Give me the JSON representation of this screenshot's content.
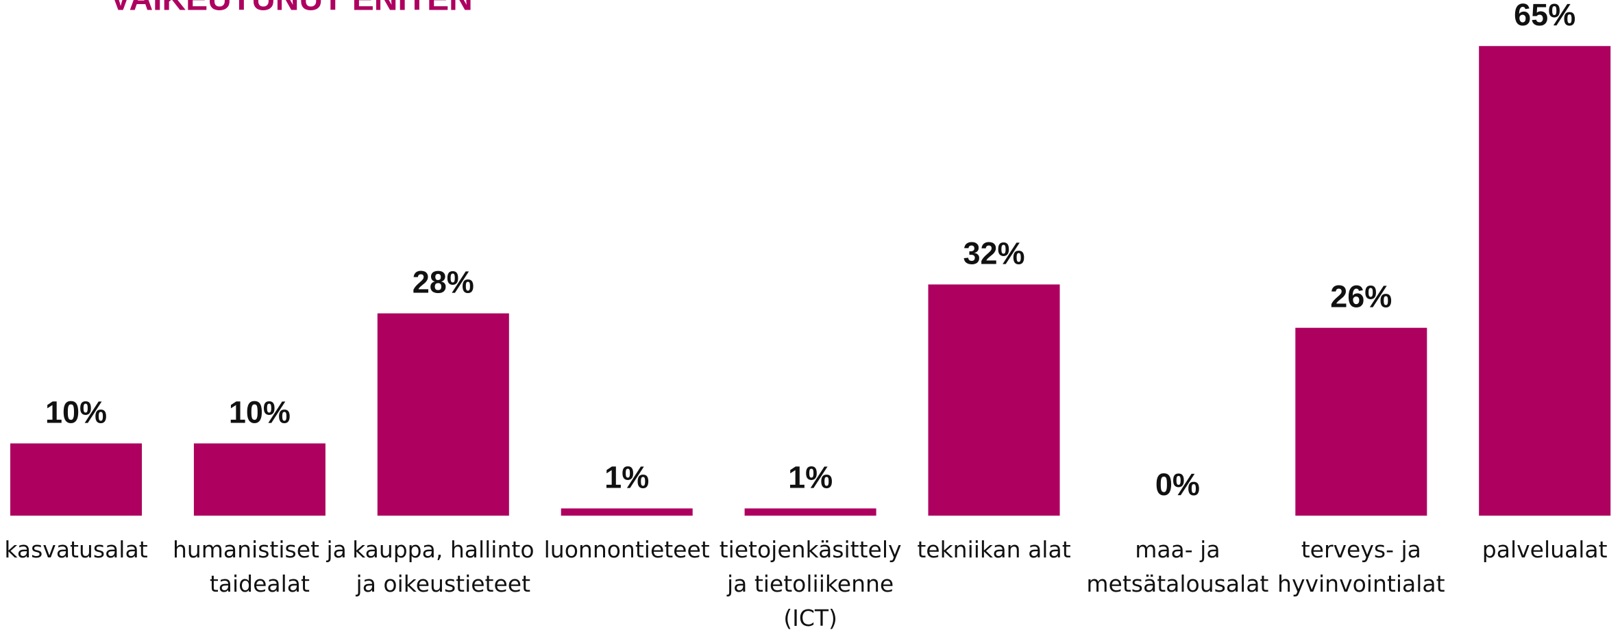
{
  "chart_data": {
    "type": "bar",
    "title": "VAIKEUTUNUT ENITEN",
    "categories": [
      "kasvatusalat",
      "humanistiset ja taidealat",
      "kauppa, hallinto ja oikeustieteet",
      "luonnontieteet",
      "tietojenkäsittely ja tietoliikenne (ICT)",
      "tekniikan alat",
      "maa- ja metsätalousalat",
      "terveys- ja hyvinvointialat",
      "palvelualat"
    ],
    "values": [
      10,
      10,
      28,
      1,
      1,
      32,
      0,
      26,
      65
    ],
    "value_labels": [
      "10%",
      "10%",
      "28%",
      "1%",
      "1%",
      "32%",
      "0%",
      "26%",
      "65%"
    ],
    "color": "#ad005f"
  }
}
